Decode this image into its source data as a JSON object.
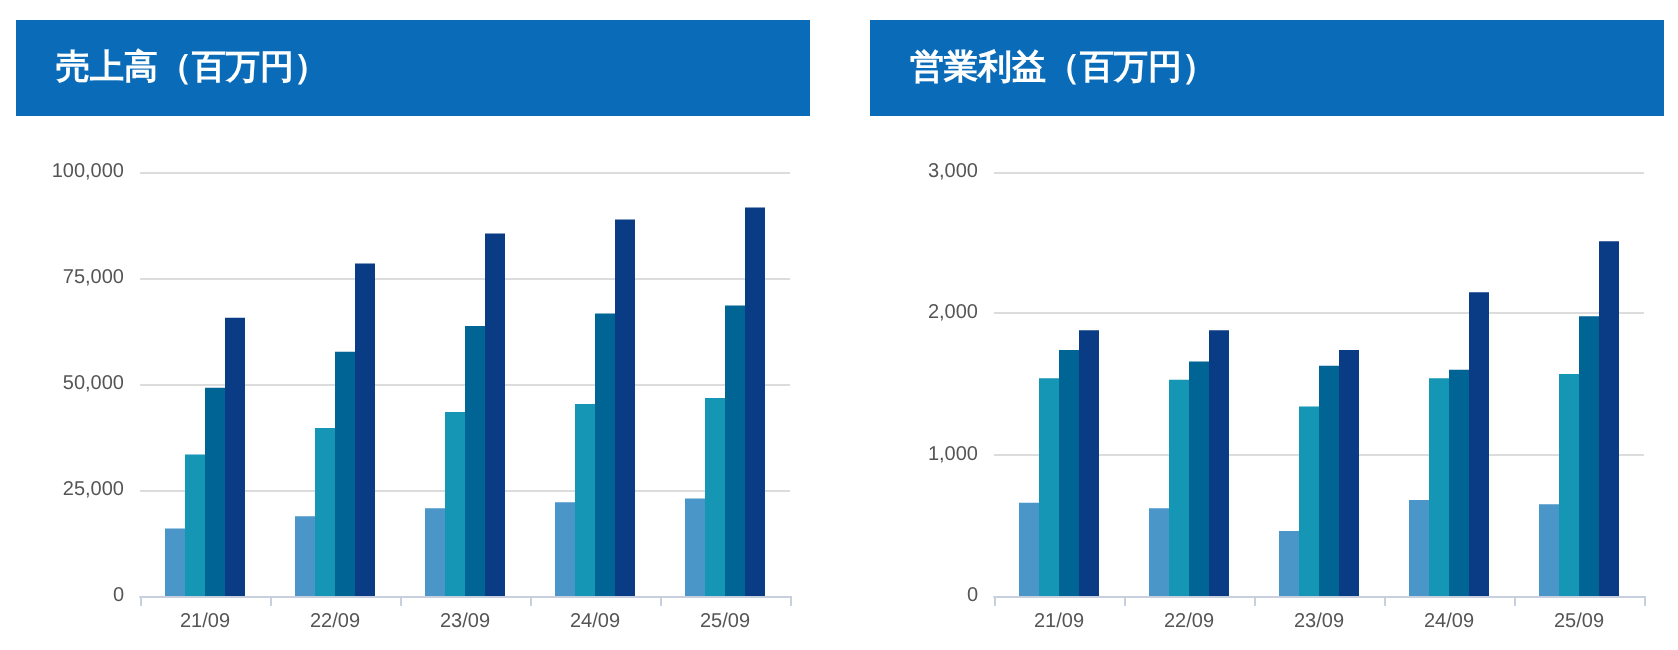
{
  "chart_data": [
    {
      "type": "bar",
      "title": "売上高（百万円）",
      "categories": [
        "21/09",
        "22/09",
        "23/09",
        "24/09",
        "25/09"
      ],
      "series": [
        {
          "color": "#4a96c8",
          "values": [
            15900,
            18800,
            20700,
            22100,
            23000
          ]
        },
        {
          "color": "#1596b4",
          "values": [
            33400,
            39600,
            43400,
            45300,
            46700
          ]
        },
        {
          "color": "#006494",
          "values": [
            49100,
            57600,
            63700,
            66600,
            68500
          ]
        },
        {
          "color": "#0a3c86",
          "values": [
            65600,
            78400,
            85500,
            88800,
            91600
          ]
        }
      ],
      "ylim": [
        0,
        100000
      ],
      "yticks": [
        0,
        {
          "value": 25000,
          "label": "25,000"
        },
        {
          "value": 50000,
          "label": "50,000"
        },
        {
          "value": 75000,
          "label": "75,000"
        },
        {
          "value": 100000,
          "label": "100,000"
        }
      ],
      "grid": "y"
    },
    {
      "type": "bar",
      "title": "営業利益（百万円）",
      "categories": [
        "21/09",
        "22/09",
        "23/09",
        "24/09",
        "25/09"
      ],
      "series": [
        {
          "color": "#4a96c8",
          "values": [
            660,
            620,
            460,
            680,
            650
          ]
        },
        {
          "color": "#1596b4",
          "values": [
            1540,
            1530,
            1340,
            1540,
            1570
          ]
        },
        {
          "color": "#006494",
          "values": [
            1740,
            1660,
            1630,
            1600,
            1980
          ]
        },
        {
          "color": "#0a3c86",
          "values": [
            1880,
            1880,
            1740,
            2150,
            2510
          ]
        }
      ],
      "ylim": [
        0,
        3000
      ],
      "yticks": [
        0,
        {
          "value": 1000,
          "label": "1,000"
        },
        {
          "value": 2000,
          "label": "2,000"
        },
        {
          "value": 3000,
          "label": "3,000"
        }
      ],
      "grid": "y"
    }
  ]
}
